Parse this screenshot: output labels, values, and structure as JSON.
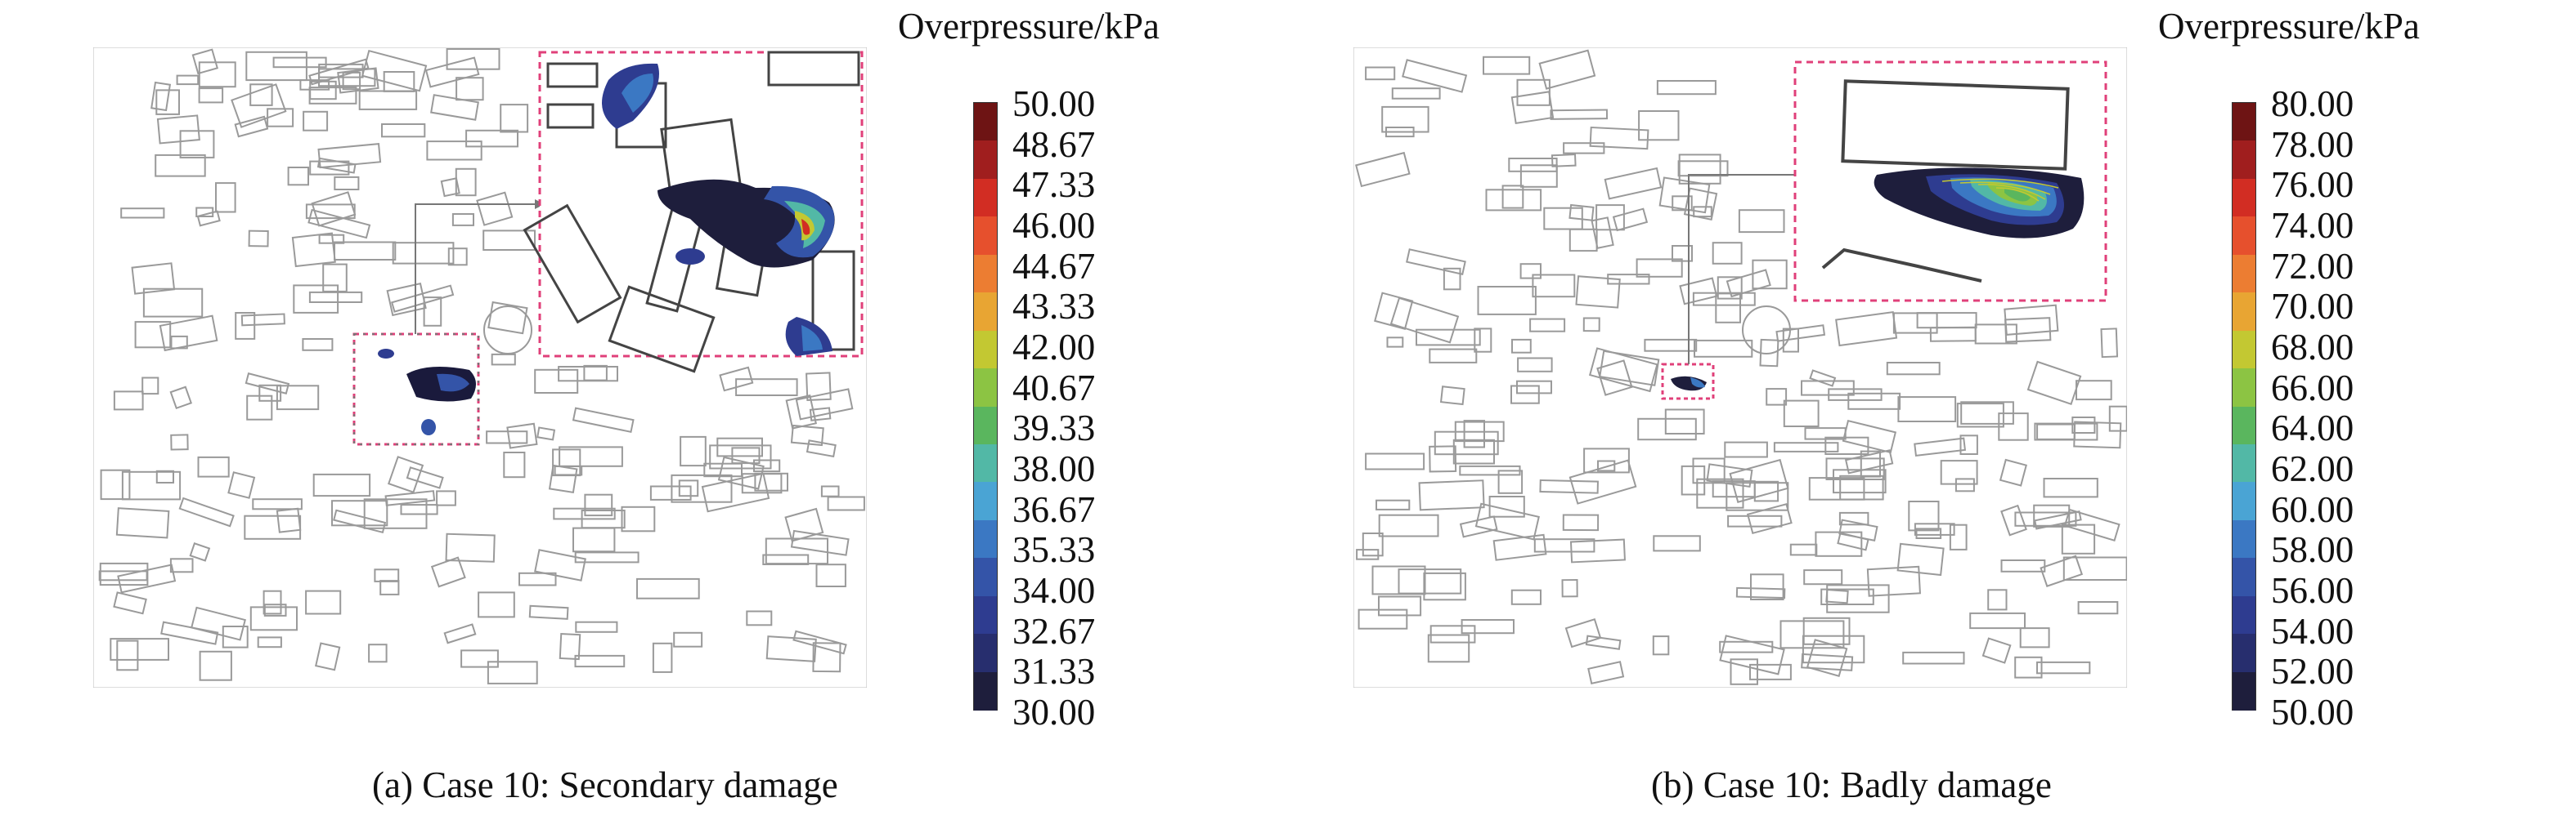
{
  "panels": [
    {
      "caption": "(a) Case 10: Secondary damage",
      "colorbar_title": "Overpressure/kPa",
      "ticks": [
        "50.00",
        "48.67",
        "47.33",
        "46.00",
        "44.67",
        "43.33",
        "42.00",
        "40.67",
        "39.33",
        "38.00",
        "36.67",
        "35.33",
        "34.00",
        "32.67",
        "31.33",
        "30.00"
      ]
    },
    {
      "caption": "(b) Case 10: Badly damage",
      "colorbar_title": "Overpressure/kPa",
      "ticks": [
        "80.00",
        "78.00",
        "76.00",
        "74.00",
        "72.00",
        "70.00",
        "68.00",
        "66.00",
        "64.00",
        "62.00",
        "60.00",
        "58.00",
        "56.00",
        "54.00",
        "52.00",
        "50.00"
      ]
    }
  ],
  "colorbar_colors": [
    "#6e1414",
    "#a01e1e",
    "#d22d23",
    "#e6502d",
    "#ec7d32",
    "#e8a533",
    "#c3c832",
    "#8cc443",
    "#5ab65e",
    "#52b8a6",
    "#4aa4d4",
    "#3b78c3",
    "#3454a8",
    "#2e3c90",
    "#272e6e",
    "#1e1e3c"
  ]
}
